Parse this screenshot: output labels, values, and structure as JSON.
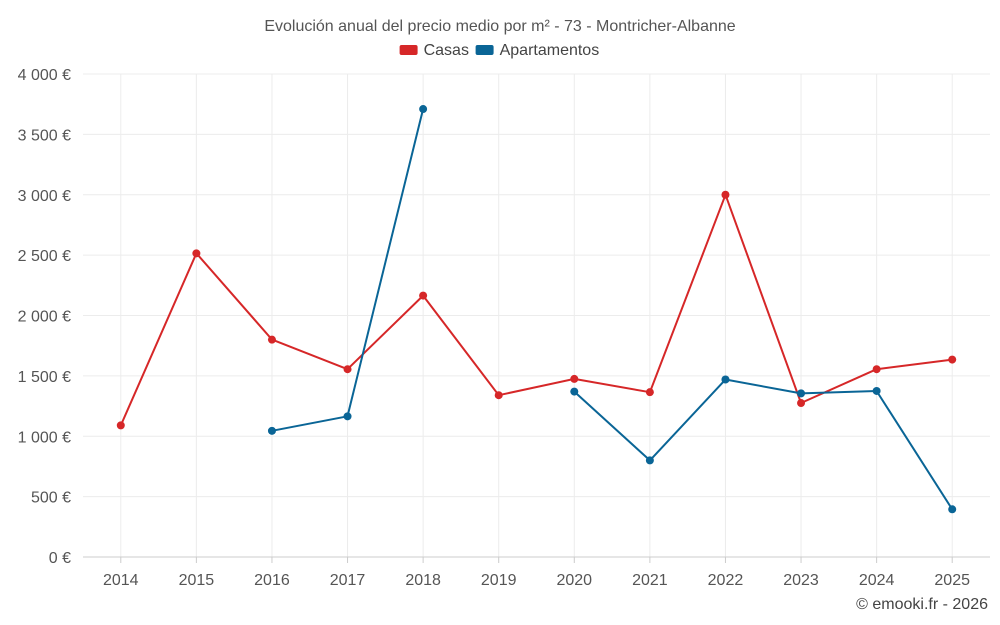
{
  "chart_data": {
    "type": "line",
    "title": "Evolución anual del precio medio por m² - 73 - Montricher-Albanne",
    "x": [
      "2014",
      "2015",
      "2016",
      "2017",
      "2018",
      "2019",
      "2020",
      "2021",
      "2022",
      "2023",
      "2024",
      "2025"
    ],
    "ylim": [
      0,
      4000
    ],
    "yticks": [
      0,
      500,
      1000,
      1500,
      2000,
      2500,
      3000,
      3500,
      4000
    ],
    "ytick_labels": [
      "0 €",
      "500 €",
      "1 000 €",
      "1 500 €",
      "2 000 €",
      "2 500 €",
      "3 000 €",
      "3 500 €",
      "4 000 €"
    ],
    "legend_position": "top-center",
    "grid": true,
    "series": [
      {
        "name": "Casas",
        "color": "#d62728",
        "values": [
          1090,
          2515,
          1800,
          1555,
          2165,
          1340,
          1475,
          1365,
          3000,
          1275,
          1555,
          1635
        ]
      },
      {
        "name": "Apartamentos",
        "color": "#0a6596",
        "values": [
          null,
          null,
          1045,
          1165,
          3710,
          null,
          1370,
          800,
          1470,
          1355,
          1375,
          395
        ]
      }
    ]
  },
  "footer": {
    "credit": "© emooki.fr - 2026"
  }
}
